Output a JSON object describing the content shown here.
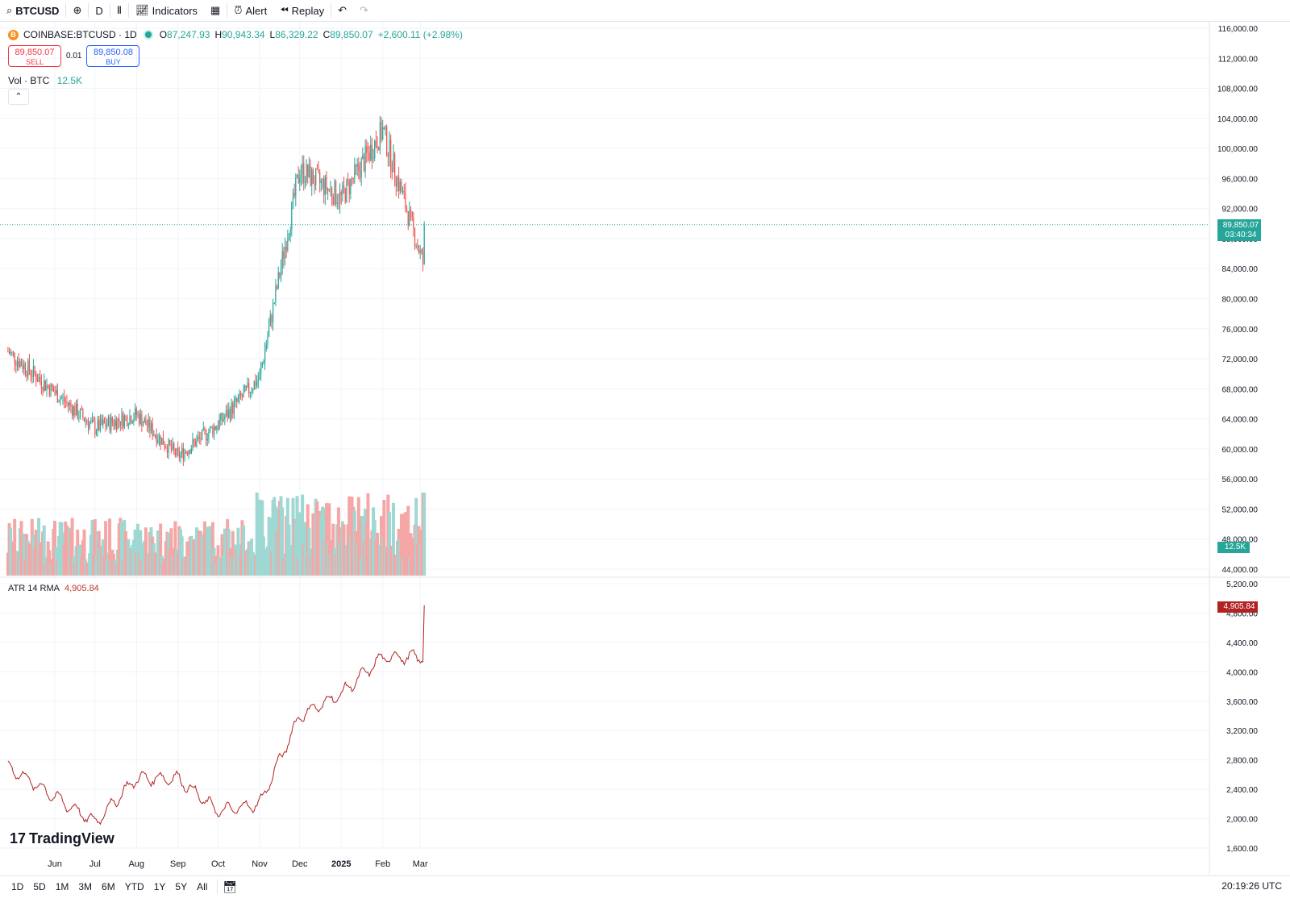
{
  "toolbar": {
    "symbol": "BTCUSD",
    "add_icon": "plus-circle-icon",
    "interval": "D",
    "chart_type_icon": "candles-icon",
    "indicators_label": "Indicators",
    "layouts_icon": "grid-icon",
    "alert_label": "Alert",
    "replay_label": "Replay",
    "undo_icon": "undo-icon",
    "redo_icon": "redo-icon"
  },
  "legend": {
    "symbol": "COINBASE:BTCUSD · 1D",
    "o_key": "O",
    "open": "87,247.93",
    "h_key": "H",
    "high": "90,943.34",
    "l_key": "L",
    "low": "86,329.22",
    "c_key": "C",
    "close": "89,850.07",
    "change": "+2,600.11 (+2.98%)"
  },
  "trade": {
    "sell_price": "89,850.07",
    "sell_label": "SELL",
    "spread": "0.01",
    "buy_price": "89,850.08",
    "buy_label": "BUY"
  },
  "volume": {
    "label": "Vol · BTC",
    "value": "12.5K"
  },
  "atr": {
    "label": "ATR 14 RMA",
    "value": "4,905.84"
  },
  "price_labels": {
    "last": "89,850.07",
    "countdown": "03:40:34",
    "volume": "12.5K",
    "atr": "4,905.84"
  },
  "branding": "TradingView",
  "ranges": [
    "1D",
    "5D",
    "1M",
    "3M",
    "6M",
    "YTD",
    "1Y",
    "5Y",
    "All"
  ],
  "clock": "20:19:26 UTC",
  "colors": {
    "up": "#26a69a",
    "down": "#ef5350",
    "atr": "#b22222",
    "accent": "#2962ff"
  },
  "chart_data": [
    {
      "type": "candlestick",
      "title": "COINBASE:BTCUSD · 1D",
      "x_tick_labels": [
        "Jun",
        "Jul",
        "Aug",
        "Sep",
        "Oct",
        "Nov",
        "Dec",
        "2025",
        "Feb",
        "Mar"
      ],
      "y_tick_labels": [
        "116,000.00",
        "112,000.00",
        "108,000.00",
        "104,000.00",
        "100,000.00",
        "96,000.00",
        "92,000.00",
        "88,000.00",
        "84,000.00",
        "80,000.00",
        "76,000.00",
        "72,000.00",
        "68,000.00",
        "64,000.00",
        "60,000.00",
        "56,000.00",
        "52,000.00",
        "48,000.00",
        "44,000.00"
      ],
      "ylim": [
        44000,
        116000
      ],
      "months": [
        "2024-06",
        "2024-07",
        "2024-08",
        "2024-09",
        "2024-10",
        "2024-11",
        "2024-12",
        "2025-01",
        "2025-02",
        "2025-03"
      ],
      "approx_close_by_month_start": [
        67500,
        62800,
        64600,
        59000,
        63300,
        69500,
        97200,
        93400,
        102400,
        86000
      ],
      "last_close": 89850.07,
      "dotted_last_price_line": true
    },
    {
      "type": "line",
      "title": "ATR 14 RMA",
      "y_tick_labels": [
        "5,200.00",
        "4,800.00",
        "4,400.00",
        "4,000.00",
        "3,600.00",
        "3,200.00",
        "2,800.00",
        "2,400.00",
        "2,000.00",
        "1,600.00"
      ],
      "ylim": [
        1600,
        5200
      ],
      "months": [
        "2024-06",
        "2024-07",
        "2024-08",
        "2024-09",
        "2024-10",
        "2024-11",
        "2024-12",
        "2025-01",
        "2025-02",
        "2025-03"
      ],
      "approx_value_by_month_start": [
        2300,
        1950,
        2550,
        2550,
        2100,
        2200,
        3400,
        3700,
        4200,
        4200
      ],
      "last_value": 4905.84
    }
  ]
}
